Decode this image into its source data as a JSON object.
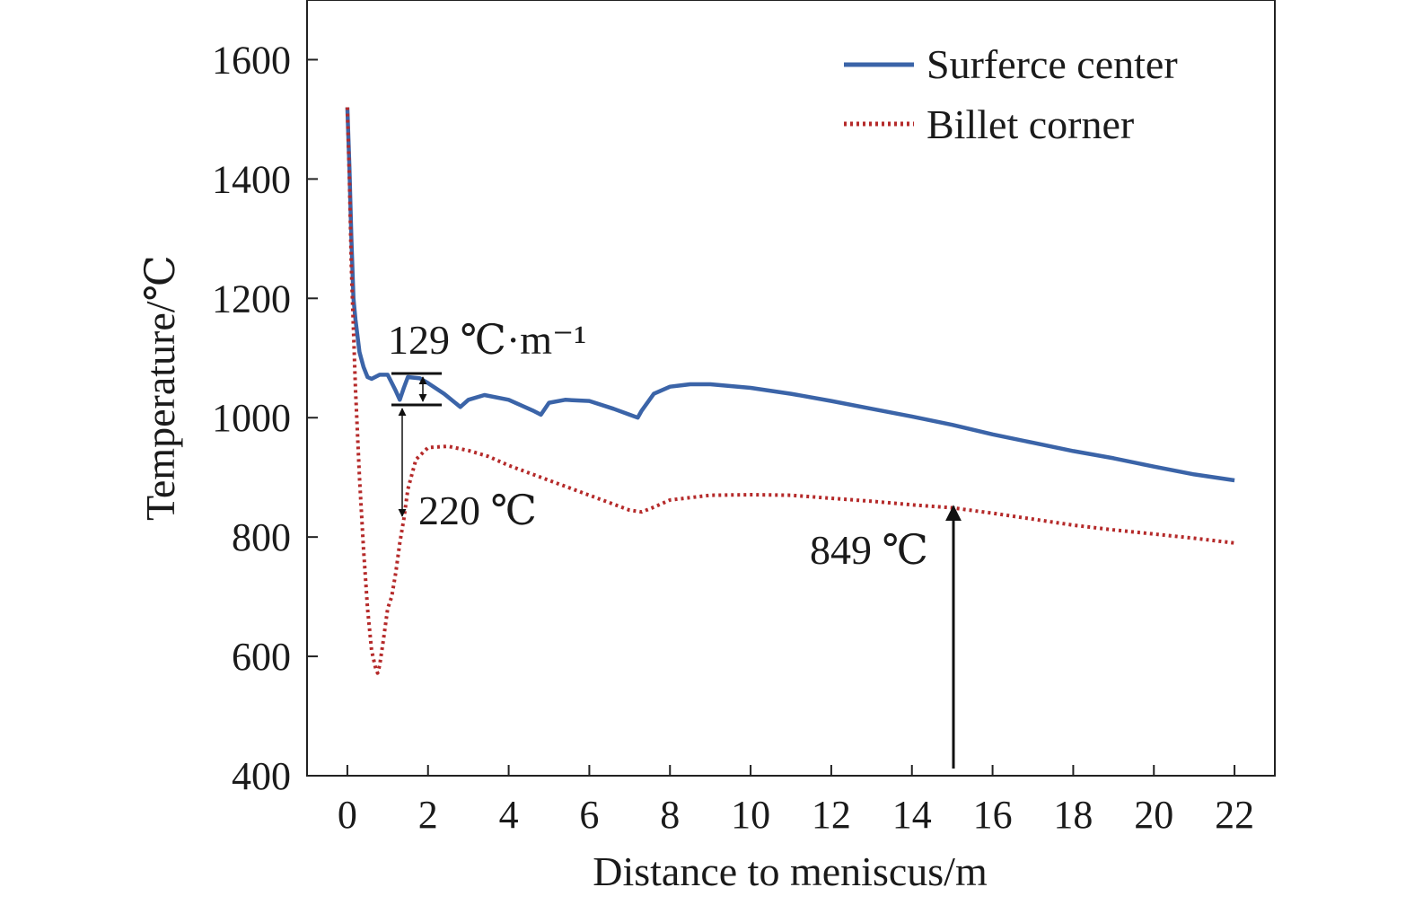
{
  "chart_data": {
    "type": "line",
    "title": "",
    "xlabel": "Distance to meniscus/m",
    "ylabel": "Temperature/℃",
    "xlim": [
      -1,
      23
    ],
    "ylim": [
      400,
      1700
    ],
    "xticks": [
      0,
      2,
      4,
      6,
      8,
      10,
      12,
      14,
      16,
      18,
      20,
      22
    ],
    "yticks": [
      400,
      600,
      800,
      1000,
      1200,
      1400,
      1600
    ],
    "grid": false,
    "legend_position": "top-right",
    "series": [
      {
        "name": "Surferce center",
        "color": "#3b64a8",
        "style": "solid",
        "x": [
          0.0,
          0.05,
          0.1,
          0.15,
          0.2,
          0.3,
          0.4,
          0.5,
          0.6,
          0.8,
          1.0,
          1.2,
          1.3,
          1.4,
          1.5,
          1.8,
          2.0,
          2.4,
          2.8,
          3.0,
          3.4,
          4.0,
          4.6,
          4.8,
          5.0,
          5.4,
          6.0,
          6.6,
          7.0,
          7.2,
          7.3,
          7.6,
          8.0,
          8.5,
          9.0,
          10.0,
          11.0,
          12.0,
          13.0,
          14.0,
          15.0,
          16.0,
          17.0,
          18.0,
          19.0,
          20.0,
          21.0,
          22.0
        ],
        "values": [
          1520,
          1420,
          1300,
          1200,
          1165,
          1110,
          1085,
          1068,
          1065,
          1072,
          1072,
          1045,
          1030,
          1050,
          1068,
          1066,
          1058,
          1040,
          1018,
          1030,
          1038,
          1030,
          1012,
          1005,
          1025,
          1030,
          1028,
          1015,
          1005,
          1000,
          1012,
          1040,
          1052,
          1056,
          1056,
          1050,
          1040,
          1028,
          1015,
          1002,
          988,
          972,
          958,
          944,
          932,
          918,
          905,
          895
        ]
      },
      {
        "name": "Billet corner",
        "color": "#b52a2a",
        "style": "dotted",
        "x": [
          0.0,
          0.05,
          0.1,
          0.2,
          0.3,
          0.4,
          0.5,
          0.6,
          0.7,
          0.75,
          0.8,
          0.9,
          1.0,
          1.1,
          1.2,
          1.3,
          1.4,
          1.5,
          1.7,
          2.0,
          2.5,
          3.0,
          3.5,
          4.0,
          5.0,
          6.0,
          7.0,
          7.3,
          7.6,
          8.0,
          9.0,
          10.0,
          11.0,
          12.0,
          13.0,
          14.0,
          15.0,
          16.0,
          17.0,
          18.0,
          19.0,
          20.0,
          21.0,
          22.0
        ],
        "values": [
          1520,
          1400,
          1250,
          1050,
          900,
          780,
          680,
          610,
          580,
          572,
          585,
          630,
          680,
          700,
          740,
          790,
          830,
          880,
          930,
          950,
          952,
          945,
          935,
          920,
          895,
          870,
          845,
          842,
          850,
          862,
          870,
          871,
          870,
          865,
          860,
          854,
          849,
          840,
          830,
          820,
          812,
          805,
          798,
          790
        ]
      }
    ],
    "annotations": {
      "gradient": "129 ℃·m⁻¹",
      "difference": "220 ℃",
      "temp_at_15m": "849 ℃"
    }
  }
}
